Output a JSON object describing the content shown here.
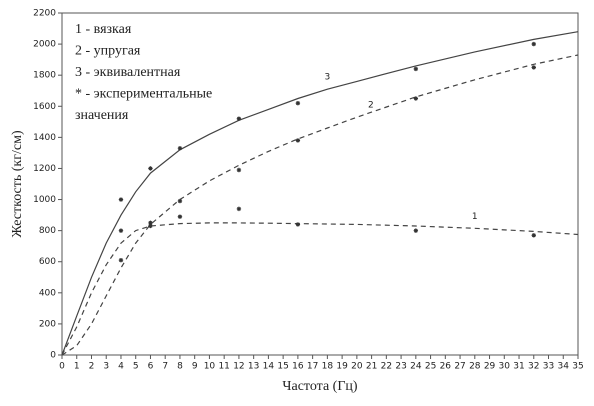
{
  "chart_data": {
    "type": "line",
    "x": [
      0,
      1,
      2,
      3,
      4,
      5,
      6,
      8,
      10,
      12,
      14,
      16,
      18,
      20,
      24,
      28,
      32,
      35
    ],
    "series": [
      {
        "name": "3",
        "color": "#444444",
        "dash": "solid",
        "values": [
          0,
          250,
          500,
          720,
          900,
          1050,
          1170,
          1320,
          1420,
          1510,
          1580,
          1650,
          1710,
          1760,
          1860,
          1950,
          2030,
          2080
        ]
      },
      {
        "name": "2",
        "color": "#444444",
        "dash": "dashed",
        "values": [
          0,
          60,
          200,
          380,
          560,
          720,
          840,
          1000,
          1120,
          1220,
          1310,
          1390,
          1460,
          1530,
          1660,
          1770,
          1870,
          1930
        ]
      },
      {
        "name": "1",
        "color": "#444444",
        "dash": "dashed",
        "values": [
          0,
          180,
          400,
          580,
          720,
          800,
          830,
          845,
          850,
          850,
          848,
          845,
          843,
          840,
          830,
          815,
          795,
          775
        ]
      }
    ],
    "points": {
      "x": [
        4,
        4,
        4,
        6,
        6,
        6,
        8,
        8,
        8,
        12,
        12,
        12,
        16,
        16,
        16,
        24,
        24,
        24,
        32,
        32,
        32
      ],
      "y": [
        1000,
        800,
        610,
        1200,
        850,
        830,
        1330,
        990,
        890,
        1520,
        1190,
        940,
        1620,
        1380,
        840,
        1840,
        1650,
        800,
        2000,
        1850,
        770
      ],
      "color": "#333333"
    },
    "legend_text": [
      "1 - вязкая",
      "2 - упругая",
      "3 - эквивалентная",
      "* - экспериментальные",
      "значения"
    ],
    "xlabel": "Частота (Гц)",
    "ylabel": "Жесткость (кг/см)",
    "xlim": [
      0,
      35
    ],
    "ylim": [
      0,
      2200
    ],
    "xticks": [
      0,
      1,
      2,
      3,
      4,
      5,
      6,
      7,
      8,
      9,
      10,
      11,
      12,
      13,
      14,
      15,
      16,
      17,
      18,
      19,
      20,
      21,
      22,
      23,
      24,
      25,
      26,
      27,
      28,
      29,
      30,
      31,
      32,
      33,
      34,
      35
    ],
    "yticks": [
      0,
      200,
      400,
      600,
      800,
      1000,
      1200,
      1400,
      1600,
      1800,
      2000,
      2200
    ],
    "grid": false
  }
}
